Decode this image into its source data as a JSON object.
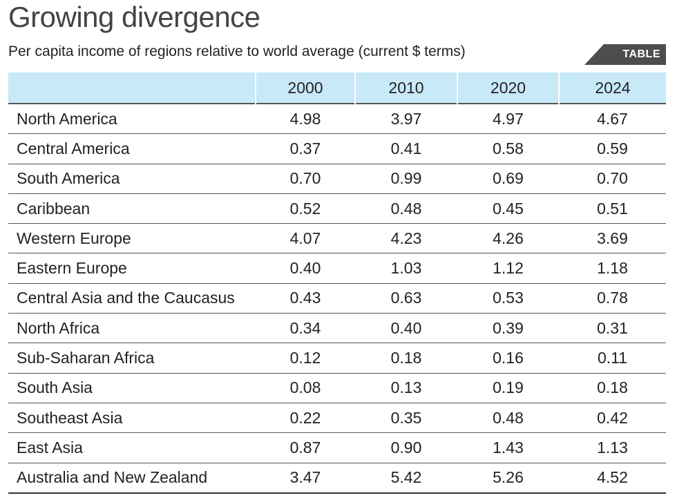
{
  "chart_data": {
    "type": "table",
    "title": "Growing divergence",
    "subtitle": "Per capita income of regions relative to world average (current $ terms)",
    "badge": "TABLE",
    "columns": [
      "",
      "2000",
      "2010",
      "2020",
      "2024"
    ],
    "rows": [
      {
        "region": "North America",
        "values": [
          "4.98",
          "3.97",
          "4.97",
          "4.67"
        ]
      },
      {
        "region": "Central America",
        "values": [
          "0.37",
          "0.41",
          "0.58",
          "0.59"
        ]
      },
      {
        "region": "South America",
        "values": [
          "0.70",
          "0.99",
          "0.69",
          "0.70"
        ]
      },
      {
        "region": "Caribbean",
        "values": [
          "0.52",
          "0.48",
          "0.45",
          "0.51"
        ]
      },
      {
        "region": "Western Europe",
        "values": [
          "4.07",
          "4.23",
          "4.26",
          "3.69"
        ]
      },
      {
        "region": "Eastern Europe",
        "values": [
          "0.40",
          "1.03",
          "1.12",
          "1.18"
        ]
      },
      {
        "region": "Central Asia and the Caucasus",
        "values": [
          "0.43",
          "0.63",
          "0.53",
          "0.78"
        ]
      },
      {
        "region": "North Africa",
        "values": [
          "0.34",
          "0.40",
          "0.39",
          "0.31"
        ]
      },
      {
        "region": "Sub-Saharan Africa",
        "values": [
          "0.12",
          "0.18",
          "0.16",
          "0.11"
        ]
      },
      {
        "region": "South Asia",
        "values": [
          "0.08",
          "0.13",
          "0.19",
          "0.18"
        ]
      },
      {
        "region": "Southeast Asia",
        "values": [
          "0.22",
          "0.35",
          "0.48",
          "0.42"
        ]
      },
      {
        "region": "East Asia",
        "values": [
          "0.87",
          "0.90",
          "1.43",
          "1.13"
        ]
      },
      {
        "region": "Australia and New Zealand",
        "values": [
          "3.47",
          "5.42",
          "5.26",
          "4.52"
        ]
      }
    ],
    "colors": {
      "header_bg": "#c8e9f8",
      "badge_bg": "#4d4d4d"
    }
  }
}
